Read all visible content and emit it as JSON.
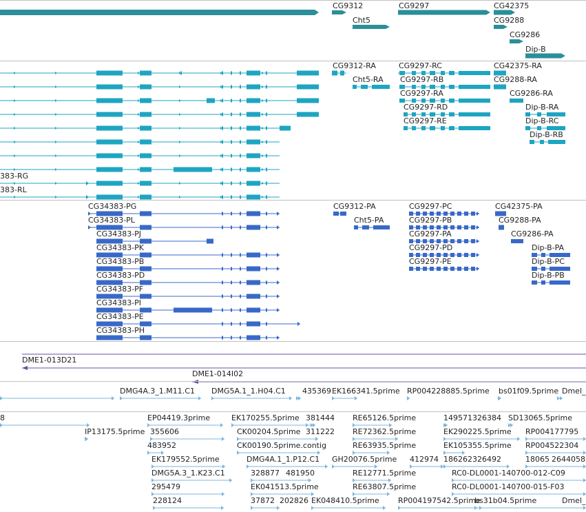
{
  "colors": {
    "gene": "#2a8f98",
    "transcript": "#1ea5c1",
    "cds": "#3869c9",
    "clone": "#6a4fa3",
    "est": "#7cb6de",
    "divider": "#c0c0c0"
  },
  "tracks": {
    "genes": {
      "labels": [
        "CG9312",
        "CG9297",
        "CG42375",
        "Cht5",
        "CG9288",
        "CG9286",
        "Dip-B"
      ]
    },
    "transcripts": {
      "labels": [
        "CG9312-RA",
        "CG9297-RC",
        "CG42375-RA",
        "Cht5-RA",
        "CG9297-RB",
        "CG9288-RA",
        "CG9297-RA",
        "CG9286-RA",
        "CG9297-RD",
        "Dip-B-RA",
        "CG9297-RE",
        "Dip-B-RC",
        "Dip-B-RB",
        "383-RG",
        "383-RL"
      ]
    },
    "cds": {
      "labels": [
        "CG34383-PG",
        "CG9312-PA",
        "CG9297-PC",
        "CG42375-PA",
        "CG34383-PL",
        "Cht5-PA",
        "CG9297-PB",
        "CG9288-PA",
        "CG34383-PJ",
        "CG9297-PA",
        "CG9286-PA",
        "CG34383-PK",
        "CG9297-PD",
        "Dip-B-PA",
        "CG34383-PB",
        "CG9297-PE",
        "Dip-B-PC",
        "CG34383-PD",
        "Dip-B-PB",
        "CG34383-PF",
        "CG34383-PI",
        "CG34383-PE",
        "CG34383-PH"
      ]
    },
    "clones": {
      "labels": [
        "DME1-013D21",
        "DME1-014I02"
      ]
    },
    "ests": {
      "labels": [
        "DMG4A.3_1.M11.C1",
        "DMG5A.1_1.H04.C1",
        "435369",
        "EK166341.5prime",
        "RP004228885.5prime",
        "bs01f09.5prime",
        "Dmel_",
        "8",
        "EP04419.3prime",
        "EK170255.5prime",
        "381444",
        "RE65126.5prime",
        "149571326384",
        "SD13065.5prime",
        "IP13175.5prime",
        "355606",
        "CK00204.5prime",
        "311222",
        "RE72362.5prime",
        "EK290225.5prime",
        "RP004177795",
        "483952",
        "CK00190.5prime.contig",
        "RE63935.5prime",
        "EK105355.5prime",
        "RP004522304",
        "EK179552.5prime",
        "DMG4A.1_1.P12.C1",
        "GH20076.5prime",
        "412974",
        "186262326492",
        "18065",
        "2644058",
        "DMG5A.3_1.K23.C1",
        "328877",
        "481950",
        "RE12771.5prime",
        "RC0-DL0001-140700-012-C09",
        "295479",
        "EK041513.5prime",
        "RE63807.5prime",
        "RC0-DL0001-140700-015-F03",
        "228124",
        "37872",
        "202826",
        "EK048410.5prime",
        "RP004197542.5prime",
        "bs31b04.5prime",
        "Dmel_"
      ]
    }
  }
}
